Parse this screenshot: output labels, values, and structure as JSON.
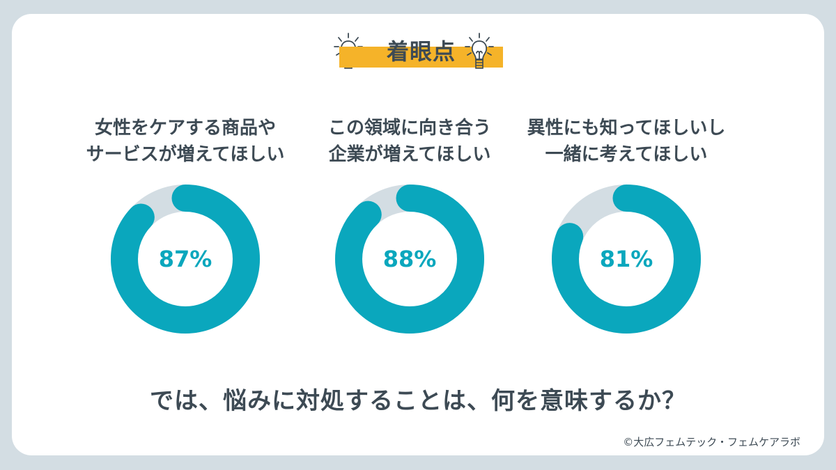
{
  "heading": {
    "title": "着眼点"
  },
  "chart_data": [
    {
      "type": "pie",
      "title": "女性をケアする商品や\nサービスが増えてほしい",
      "values": [
        87,
        13
      ],
      "labels": [
        "",
        ""
      ],
      "center_label": "87%"
    },
    {
      "type": "pie",
      "title": "この領域に向き合う\n企業が増えてほしい",
      "values": [
        88,
        12
      ],
      "labels": [
        "",
        ""
      ],
      "center_label": "88%"
    },
    {
      "type": "pie",
      "title": "異性にも知ってほしいし\n一緒に考えてほしい",
      "values": [
        81,
        19
      ],
      "labels": [
        "",
        ""
      ],
      "center_label": "81%"
    }
  ],
  "question": "では、悩みに対処することは、何を意味するか？",
  "credit": "©大広フェムテック・フェムケアラボ",
  "colors": {
    "accent": "#0aa7bd",
    "remainder": "#d3dde3",
    "heading_bar": "#f5b329",
    "text": "#3d4a54"
  },
  "icons": {
    "left": "lightbulb-icon",
    "right": "lightbulb-icon"
  }
}
